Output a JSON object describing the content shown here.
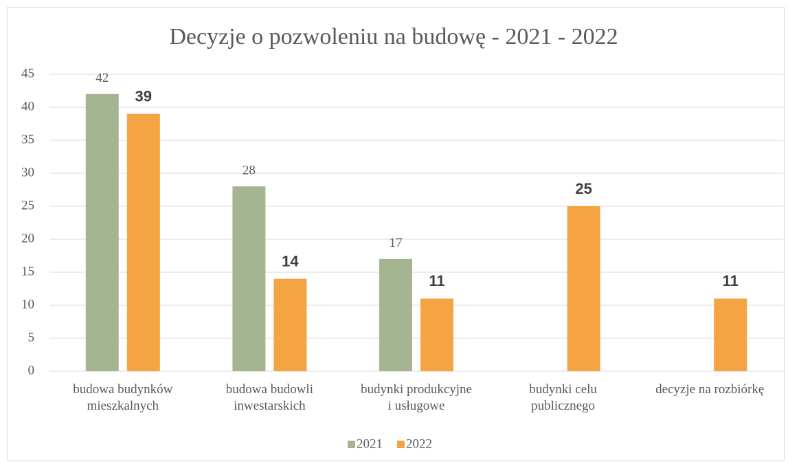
{
  "chart_data": {
    "type": "bar",
    "title": "Decyzje o pozwoleniu na budowę - 2021 - 2022",
    "categories": [
      "budowa budynków mieszkalnych",
      "budowa budowli inwestarskich",
      "budynki produkcyjne i usługowe",
      "budynki celu publicznego",
      "decyzje na rozbiórkę"
    ],
    "series": [
      {
        "name": "2021",
        "color": "#a5b592",
        "values": [
          42,
          28,
          17,
          null,
          null
        ]
      },
      {
        "name": "2022",
        "color": "#f4a443",
        "values": [
          39,
          14,
          11,
          25,
          11
        ]
      }
    ],
    "ylim": [
      0,
      45
    ],
    "yticks": [
      0,
      5,
      10,
      15,
      20,
      25,
      30,
      35,
      40,
      45
    ],
    "grid": true,
    "legend": "bottom"
  }
}
